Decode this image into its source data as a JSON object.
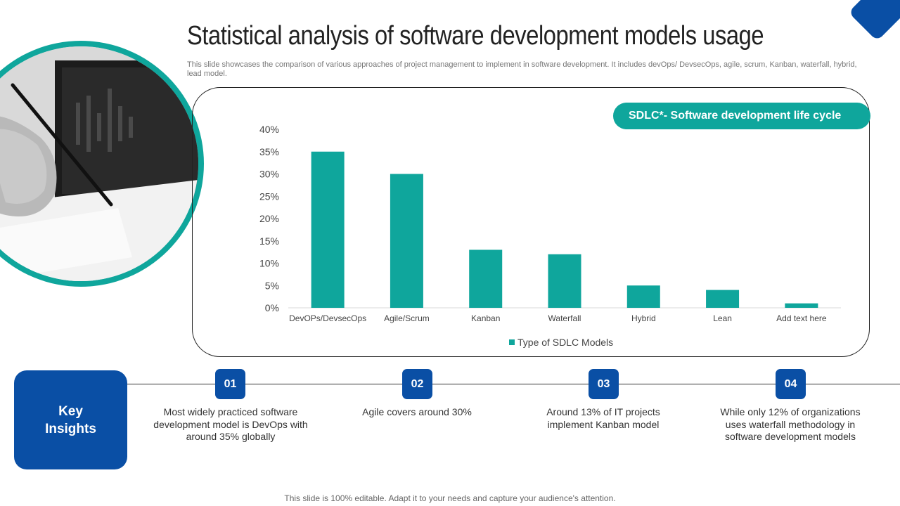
{
  "slide": {
    "title": "Statistical analysis of software development models usage",
    "subtitle": "This slide showcases the comparison of various approaches of project management to implement in software development. It includes devOps/ DevsecOps, agile, scrum, Kanban, waterfall, hybrid,  lead model.",
    "callout": "SDLC*- Software development life cycle",
    "footer": "This slide is 100% editable. Adapt it to your needs and capture your audience's attention."
  },
  "colors": {
    "accent": "#0fa69c",
    "brand": "#0a4fa5"
  },
  "chart_data": {
    "type": "bar",
    "categories": [
      "DevOPs/DevsecOps",
      "Agile/Scrum",
      "Kanban",
      "Waterfall",
      "Hybrid",
      "Lean",
      "Add text here"
    ],
    "series": [
      {
        "name": "Type of SDLC Models",
        "values": [
          35,
          30,
          13,
          12,
          5,
          4,
          1
        ]
      }
    ],
    "yticks": [
      "0%",
      "5%",
      "10%",
      "15%",
      "20%",
      "25%",
      "30%",
      "35%",
      "40%"
    ],
    "ylim": [
      0,
      40
    ],
    "title": "",
    "xlabel": "",
    "ylabel": "",
    "grid": false,
    "legend": "bottom"
  },
  "insights": {
    "heading": "Key Insights",
    "items": [
      {
        "number": "01",
        "text": "Most widely practiced software development model is DevOps with around 35% globally"
      },
      {
        "number": "02",
        "text": "Agile covers around 30%"
      },
      {
        "number": "03",
        "text": "Around 13% of IT projects implement Kanban model"
      },
      {
        "number": "04",
        "text": "While only 12% of organizations uses waterfall methodology in software development models"
      }
    ]
  }
}
